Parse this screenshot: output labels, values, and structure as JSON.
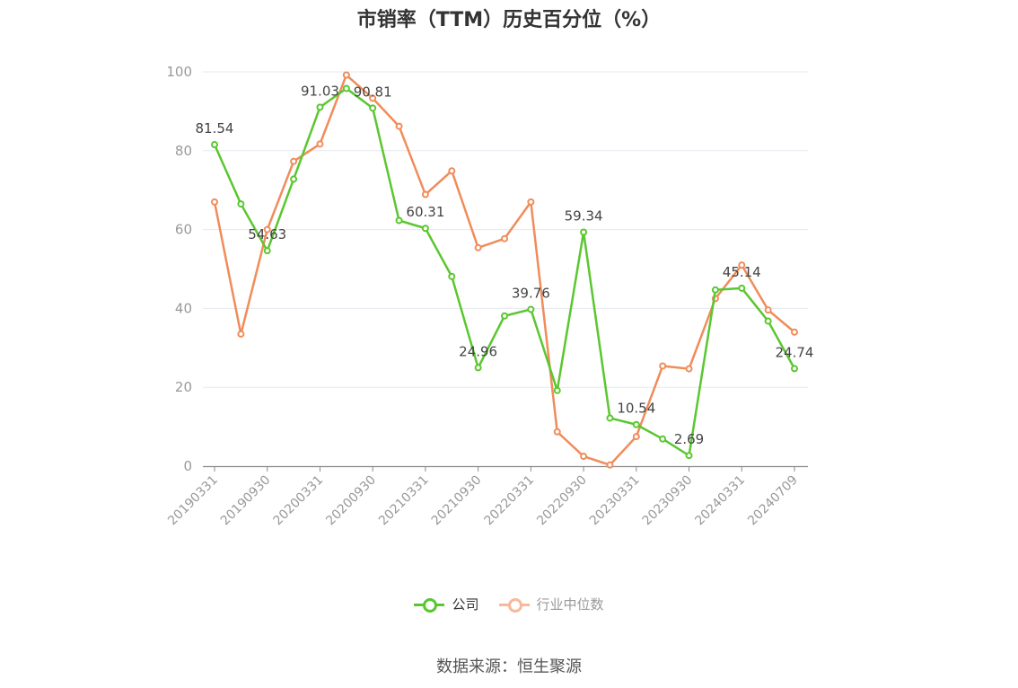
{
  "chart_data": {
    "type": "line",
    "title": "市销率（TTM）历史百分位（%）",
    "xlabel": "",
    "ylabel": "",
    "ylim": [
      0,
      100
    ],
    "yticks": [
      0,
      20,
      40,
      60,
      80,
      100
    ],
    "grid": true,
    "legend_position": "bottom",
    "x": [
      "20190331",
      "20190630",
      "20190930",
      "20191231",
      "20200331",
      "20200630",
      "20200930",
      "20201231",
      "20210331",
      "20210630",
      "20210930",
      "20211231",
      "20220331",
      "20220630",
      "20220930",
      "20221231",
      "20230331",
      "20230630",
      "20230930",
      "20231231",
      "20240331",
      "20240630",
      "20240709"
    ],
    "x_tick_labels": [
      "20190331",
      "20190930",
      "20200331",
      "20200930",
      "20210331",
      "20210930",
      "20220331",
      "20220930",
      "20230331",
      "20230930",
      "20240331",
      "20240709"
    ],
    "series": [
      {
        "name": "公司",
        "color": "#5ac72f",
        "values": [
          81.54,
          66.5,
          54.63,
          72.8,
          91.03,
          95.8,
          90.81,
          62.3,
          60.31,
          48.1,
          24.96,
          38.1,
          39.76,
          19.2,
          59.34,
          12.2,
          10.54,
          6.9,
          2.69,
          44.7,
          45.14,
          36.8,
          24.74
        ],
        "labels": {
          "0": "81.54",
          "2": "54.63",
          "4": "91.03",
          "6": "90.81",
          "8": "60.31",
          "10": "24.96",
          "12": "39.76",
          "14": "59.34",
          "16": "10.54",
          "18": "2.69",
          "20": "45.14",
          "22": "24.74"
        }
      },
      {
        "name": "行业中位数",
        "color": "#f08c5a",
        "values": [
          67.0,
          33.5,
          60.0,
          77.3,
          81.7,
          99.2,
          93.3,
          86.2,
          68.9,
          74.9,
          55.4,
          57.7,
          67.0,
          8.7,
          2.5,
          0.3,
          7.5,
          25.4,
          24.7,
          42.5,
          51.0,
          39.6,
          34.0
        ]
      }
    ]
  },
  "legend": {
    "company": "公司",
    "industry": "行业中位数",
    "company_color": "#5ac72f",
    "industry_color": "#f8b89a",
    "inactive_text_color": "#999999"
  },
  "source_text": "数据来源：恒生聚源"
}
